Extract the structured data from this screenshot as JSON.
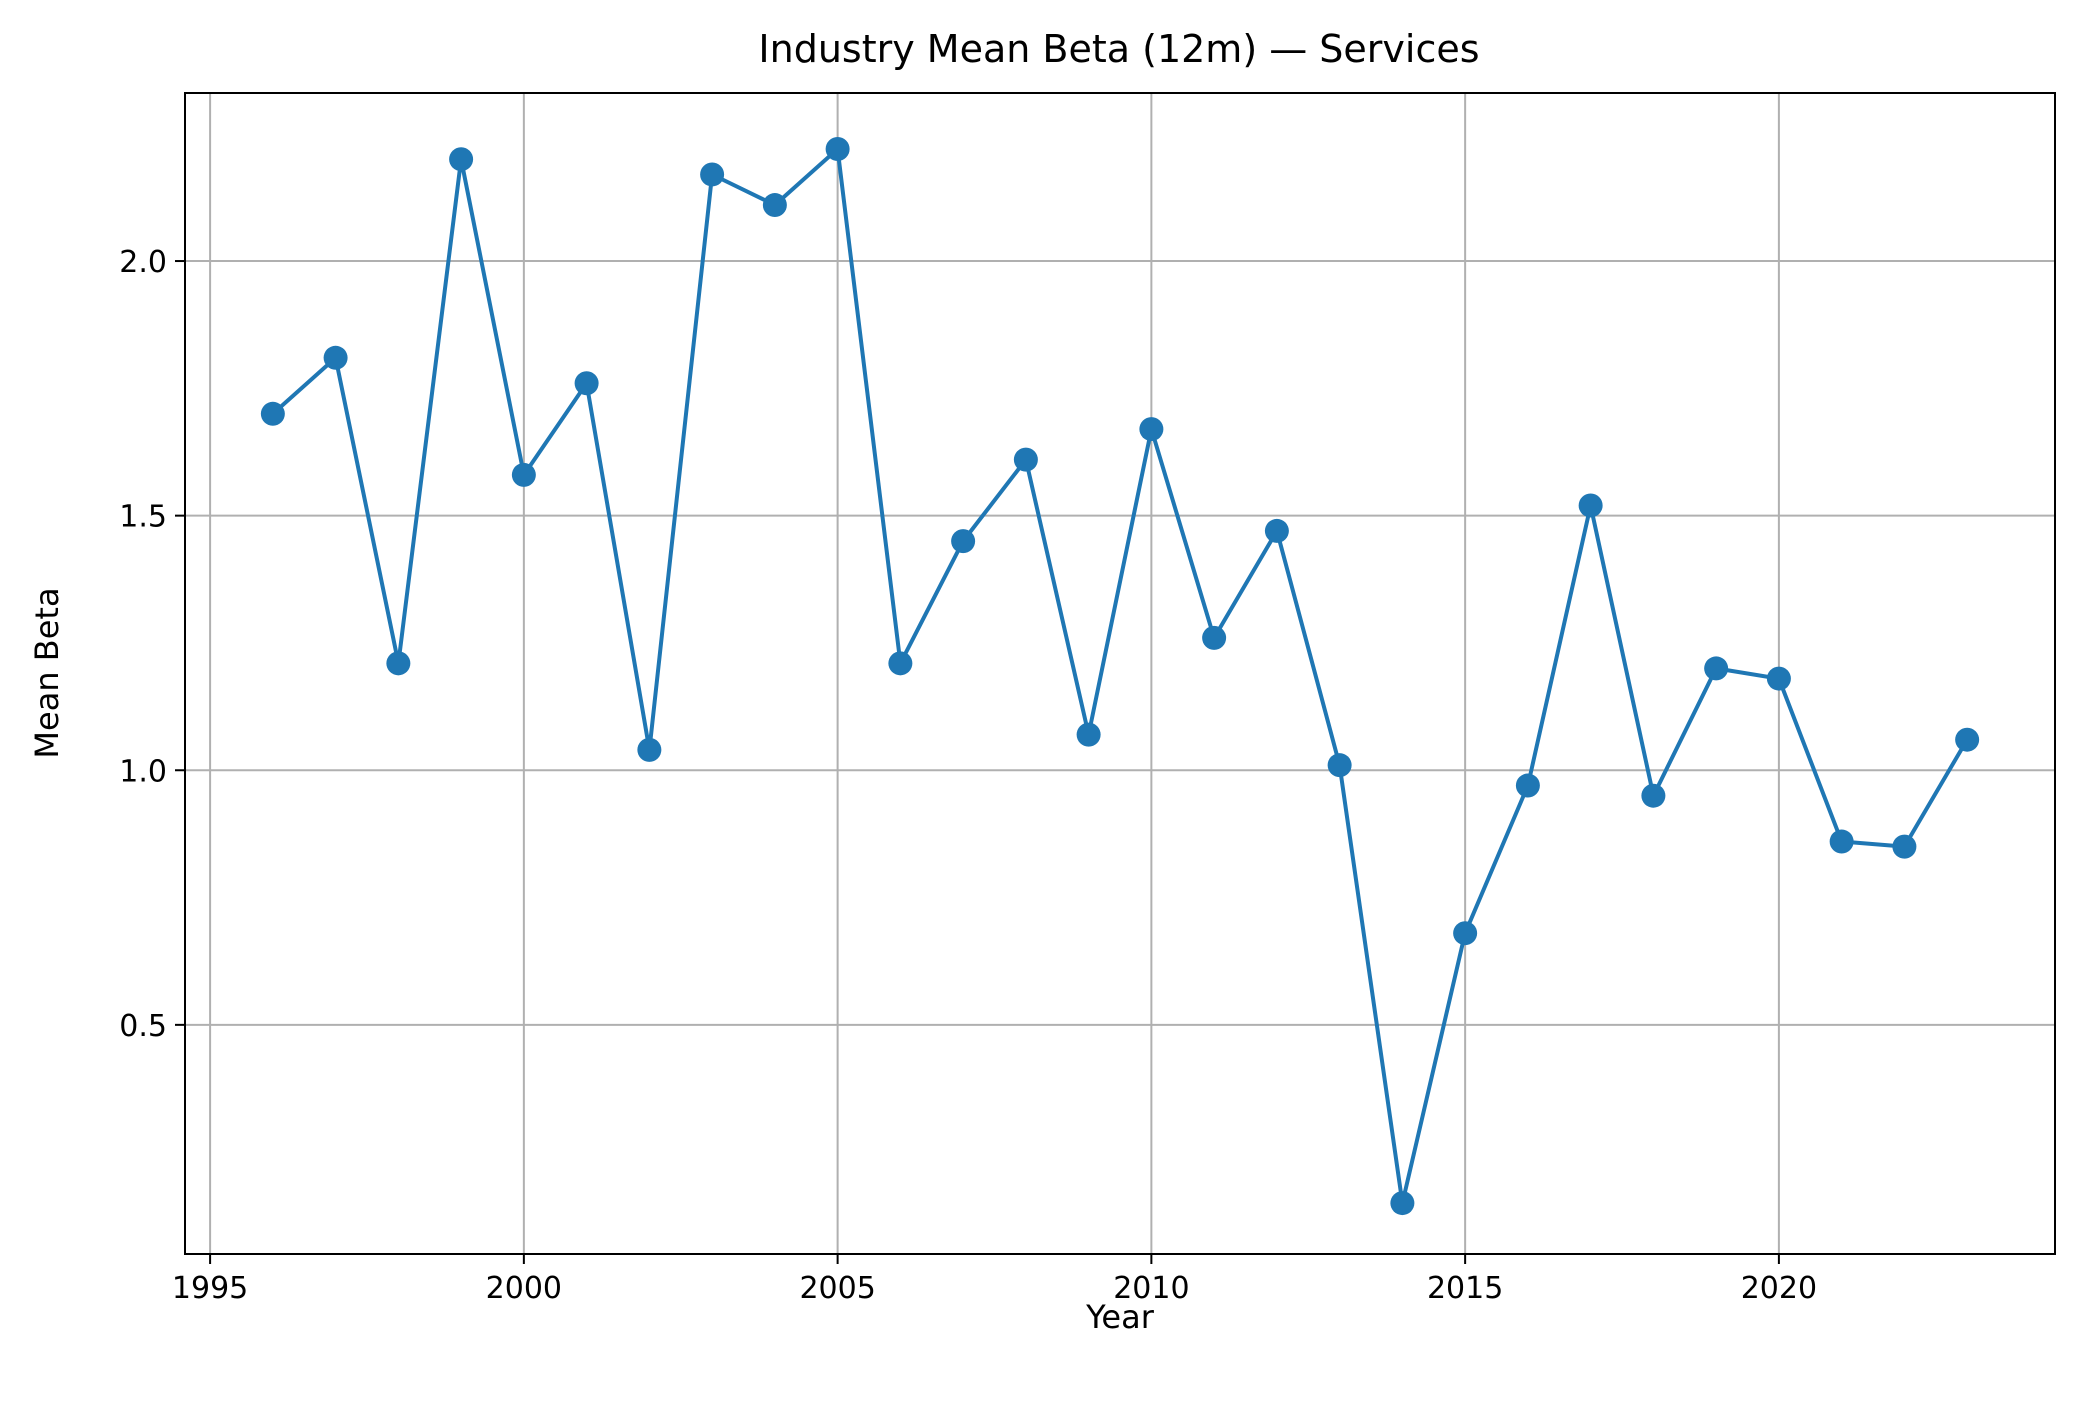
{
  "chart_data": {
    "type": "line",
    "title": "Industry Mean Beta (12m) — Services",
    "xlabel": "Year",
    "ylabel": "Mean Beta",
    "xlim": [
      1994.6,
      2024.4
    ],
    "ylim": [
      0.05,
      2.33
    ],
    "x_ticks": [
      1995,
      2000,
      2005,
      2010,
      2015,
      2020
    ],
    "y_ticks": [
      0.5,
      1.0,
      1.5,
      2.0
    ],
    "x_tick_labels": [
      "1995",
      "2000",
      "2005",
      "2010",
      "2015",
      "2020"
    ],
    "y_tick_labels": [
      "0.5",
      "1.0",
      "1.5",
      "2.0"
    ],
    "grid": true,
    "series": [
      {
        "color": "#1f77b4",
        "x": [
          1996,
          1997,
          1998,
          1999,
          2000,
          2001,
          2002,
          2003,
          2004,
          2005,
          2006,
          2007,
          2008,
          2009,
          2010,
          2011,
          2012,
          2013,
          2014,
          2015,
          2016,
          2017,
          2018,
          2019,
          2020,
          2021,
          2022,
          2023
        ],
        "y": [
          1.7,
          1.81,
          1.21,
          2.2,
          1.58,
          1.76,
          1.04,
          2.17,
          2.11,
          2.22,
          1.21,
          1.45,
          1.61,
          1.07,
          1.67,
          1.26,
          1.47,
          1.01,
          0.15,
          0.68,
          0.97,
          1.52,
          0.95,
          1.2,
          1.18,
          0.86,
          0.85,
          1.06
        ]
      }
    ]
  }
}
